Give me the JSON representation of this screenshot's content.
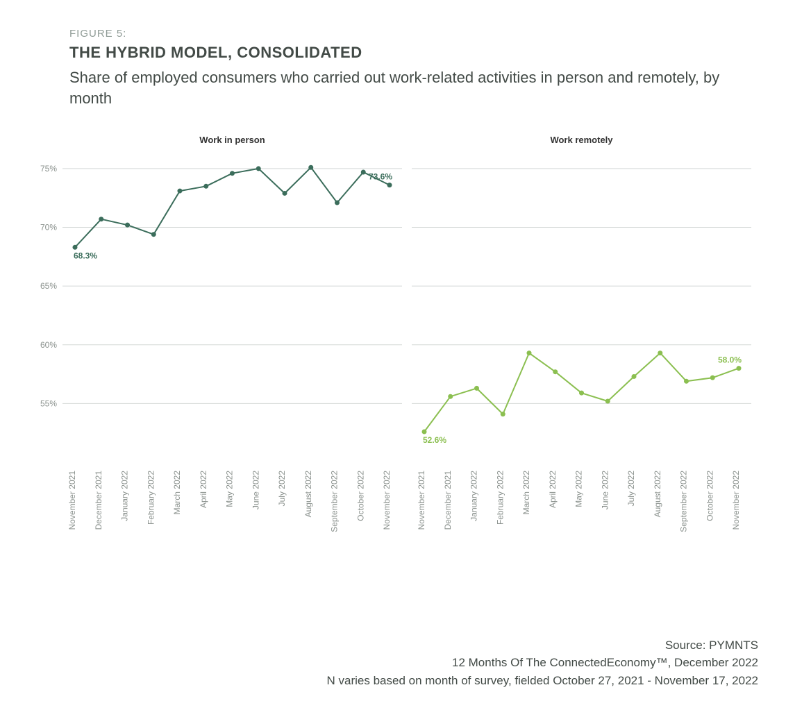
{
  "header": {
    "figure_label": "FIGURE 5:",
    "title": "THE HYBRID MODEL, CONSOLIDATED",
    "subtitle": "Share of employed consumers who carried out work-related activities in person and remotely, by month"
  },
  "chart": {
    "background_color": "#ffffff",
    "grid_color": "#d4d8d6",
    "axis_label_color": "#8b928e",
    "axis_label_fontsize": 12,
    "panel_title_fontsize": 13,
    "panel_title_weight": 700,
    "panel_title_color": "#333333",
    "endpoint_label_fontsize": 12,
    "marker_radius": 3.5,
    "line_width": 2,
    "y_ticks": [
      55,
      60,
      65,
      70,
      75
    ],
    "y_tick_labels": [
      "55%",
      "60%",
      "65%",
      "70%",
      "75%"
    ],
    "y_min": 50,
    "y_max": 76,
    "x_labels": [
      "November 2021",
      "December 2021",
      "January 2022",
      "February 2022",
      "March 2022",
      "April 2022",
      "May 2022",
      "June 2022",
      "July 2022",
      "August 2022",
      "September 2022",
      "October 2022",
      "November 2022"
    ],
    "panels": [
      {
        "title": "Work in person",
        "color": "#3b6d5b",
        "start_label": "68.3%",
        "end_label": "73.6%",
        "values": [
          68.3,
          70.7,
          70.2,
          69.4,
          73.1,
          73.5,
          74.6,
          75.0,
          72.9,
          75.1,
          72.1,
          74.7,
          73.6
        ]
      },
      {
        "title": "Work remotely",
        "color": "#8bbf50",
        "start_label": "52.6%",
        "end_label": "58.0%",
        "values": [
          52.6,
          55.6,
          56.3,
          54.1,
          59.3,
          57.7,
          55.9,
          55.2,
          57.3,
          59.3,
          56.9,
          57.2,
          58.0
        ]
      }
    ]
  },
  "footer": {
    "line1": "Source: PYMNTS",
    "line2": "12 Months Of The ConnectedEconomy™, December 2022",
    "line3": "N varies based on month of survey, fielded October 27, 2021 - November 17, 2022"
  }
}
